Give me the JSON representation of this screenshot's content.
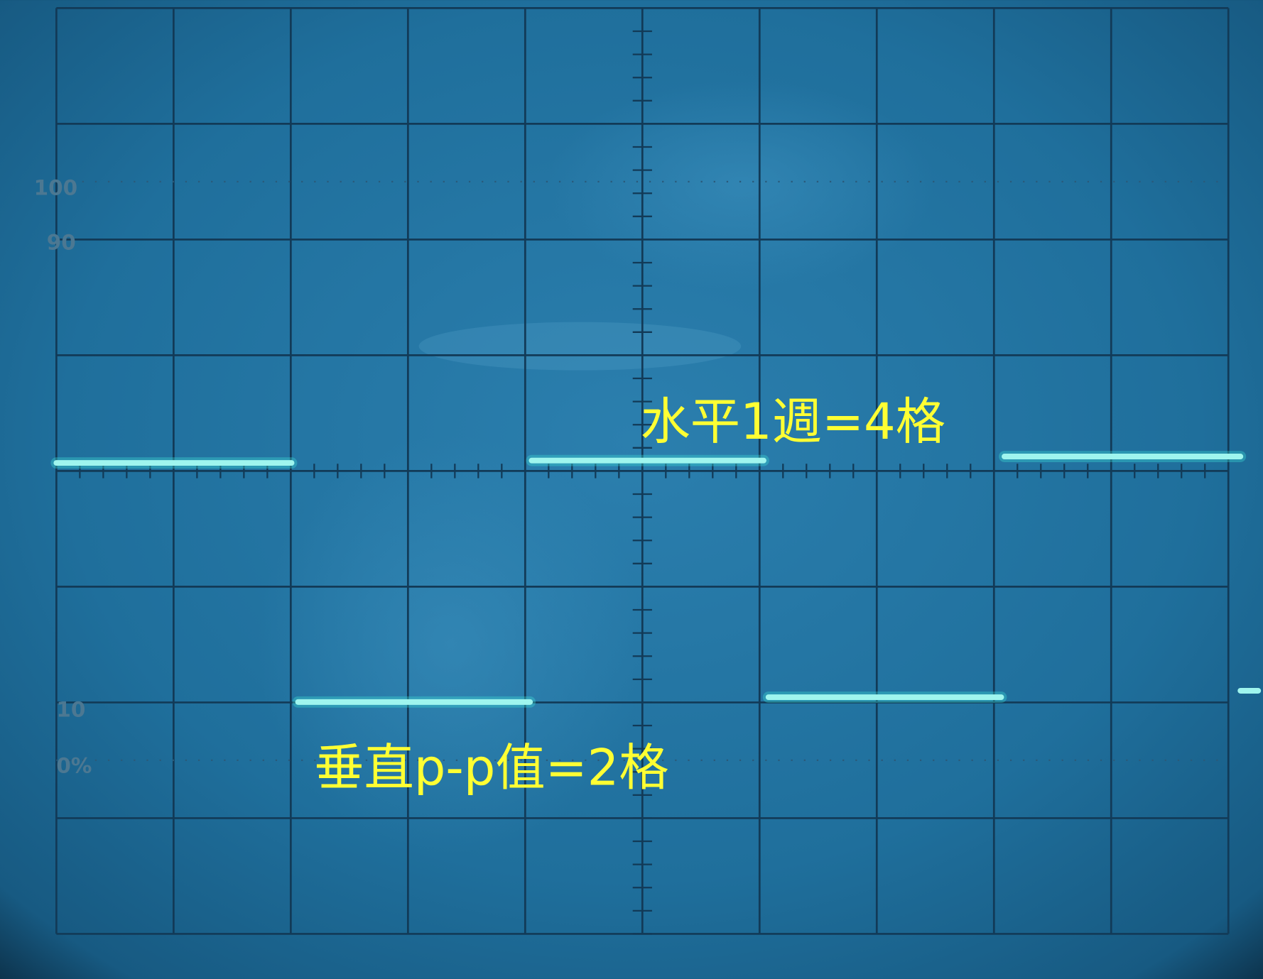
{
  "graticule_labels": [
    "100",
    "90",
    "10",
    "0%"
  ],
  "annotations": [
    "水平1週=4格",
    "垂直p-p值=2格"
  ]
}
